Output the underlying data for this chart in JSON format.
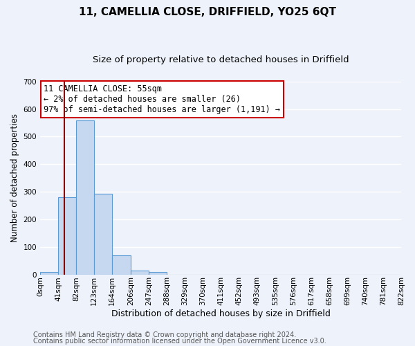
{
  "title1": "11, CAMELLIA CLOSE, DRIFFIELD, YO25 6QT",
  "title2": "Size of property relative to detached houses in Driffield",
  "xlabel": "Distribution of detached houses by size in Driffield",
  "ylabel": "Number of detached properties",
  "bin_edges": [
    0,
    41,
    82,
    123,
    164,
    206,
    247,
    288,
    329,
    370,
    411,
    452,
    493,
    535,
    576,
    617,
    658,
    699,
    740,
    781,
    822
  ],
  "bin_labels": [
    "0sqm",
    "41sqm",
    "82sqm",
    "123sqm",
    "164sqm",
    "206sqm",
    "247sqm",
    "288sqm",
    "329sqm",
    "370sqm",
    "411sqm",
    "452sqm",
    "493sqm",
    "535sqm",
    "576sqm",
    "617sqm",
    "658sqm",
    "699sqm",
    "740sqm",
    "781sqm",
    "822sqm"
  ],
  "counts": [
    8,
    281,
    558,
    292,
    68,
    14,
    8,
    0,
    0,
    0,
    0,
    0,
    0,
    0,
    0,
    0,
    0,
    0,
    0,
    0
  ],
  "bar_color": "#c5d8f0",
  "bar_edge_color": "#5b9bd5",
  "vline_x": 55,
  "vline_color": "#8b0000",
  "annotation_line1": "11 CAMELLIA CLOSE: 55sqm",
  "annotation_line2": "← 2% of detached houses are smaller (26)",
  "annotation_line3": "97% of semi-detached houses are larger (1,191) →",
  "annotation_box_color": "white",
  "annotation_box_edge_color": "#cc0000",
  "ylim": [
    0,
    700
  ],
  "yticks": [
    0,
    100,
    200,
    300,
    400,
    500,
    600,
    700
  ],
  "footer1": "Contains HM Land Registry data © Crown copyright and database right 2024.",
  "footer2": "Contains public sector information licensed under the Open Government Licence v3.0.",
  "bg_color": "#eef2fa",
  "plot_bg_color": "#eef2fa",
  "grid_color": "white",
  "title1_fontsize": 11,
  "title2_fontsize": 9.5,
  "xlabel_fontsize": 9,
  "ylabel_fontsize": 8.5,
  "tick_fontsize": 7.5,
  "footer_fontsize": 7,
  "annot_fontsize": 8.5
}
